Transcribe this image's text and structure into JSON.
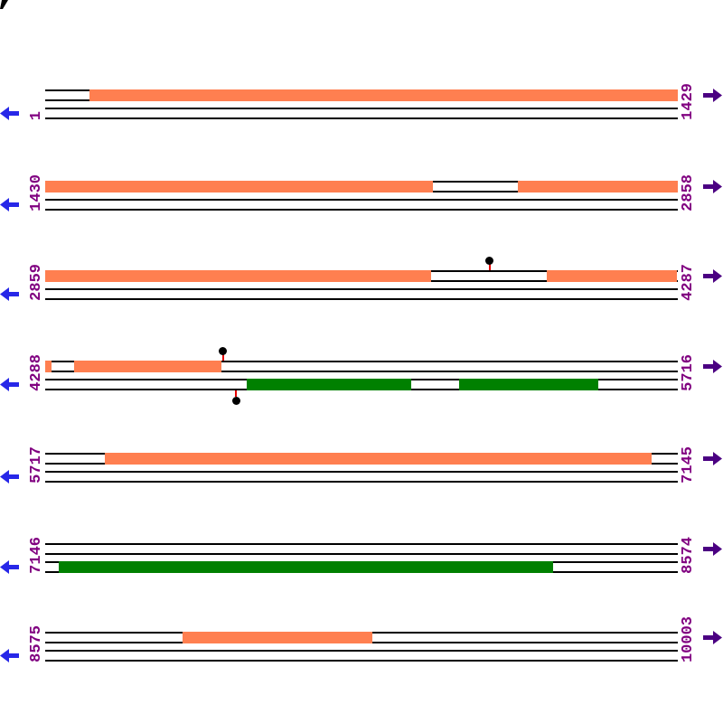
{
  "figure": {
    "type": "genome-annotation-map",
    "sequence_start": 1,
    "sequence_end": 10003,
    "bases_per_row": 1429
  },
  "colors": {
    "forward_feature": "#FF7F50",
    "reverse_feature": "#008000",
    "coordinate_label": "#800080",
    "left_arrow": "#2727E8",
    "right_arrow": "#4B0082",
    "pin_stem": "#E60000",
    "pin_head": "#000000",
    "strand_line": "#000000"
  },
  "rows": [
    {
      "start_label": "1",
      "end_label": "1429",
      "start": 1,
      "end": 1429,
      "forward_features": [
        {
          "start": 101,
          "end": 1429
        }
      ],
      "reverse_features": [],
      "pins_above": [],
      "pins_below": []
    },
    {
      "start_label": "1430",
      "end_label": "2858",
      "start": 1430,
      "end": 2858,
      "forward_features": [
        {
          "start": 1430,
          "end": 2305
        },
        {
          "start": 2497,
          "end": 2858
        }
      ],
      "reverse_features": [],
      "pins_above": [],
      "pins_below": []
    },
    {
      "start_label": "2859",
      "end_label": "4287",
      "start": 2859,
      "end": 4287,
      "forward_features": [
        {
          "start": 2859,
          "end": 3730
        },
        {
          "start": 3991,
          "end": 4287
        }
      ],
      "reverse_features": [],
      "pins_above": [
        3863
      ],
      "pins_below": []
    },
    {
      "start_label": "4288",
      "end_label": "5716",
      "start": 4288,
      "end": 5716,
      "forward_features": [
        {
          "start": 4288,
          "end": 4302
        },
        {
          "start": 4353,
          "end": 4686
        }
      ],
      "reverse_features": [
        {
          "start": 4743,
          "end": 5114
        },
        {
          "start": 5223,
          "end": 5537
        }
      ],
      "pins_above": [
        4690
      ],
      "pins_below": [
        4719
      ]
    },
    {
      "start_label": "5717",
      "end_label": "7145",
      "start": 5717,
      "end": 7145,
      "forward_features": [
        {
          "start": 5852,
          "end": 7086
        }
      ],
      "reverse_features": [],
      "pins_above": [],
      "pins_below": []
    },
    {
      "start_label": "7146",
      "end_label": "8574",
      "start": 7146,
      "end": 8574,
      "forward_features": [],
      "reverse_features": [
        {
          "start": 7177,
          "end": 8293
        }
      ],
      "pins_above": [],
      "pins_below": []
    },
    {
      "start_label": "8575",
      "end_label": "10003",
      "start": 8575,
      "end": 10003,
      "forward_features": [
        {
          "start": 8885,
          "end": 9313
        }
      ],
      "reverse_features": [],
      "pins_above": [],
      "pins_below": []
    }
  ]
}
